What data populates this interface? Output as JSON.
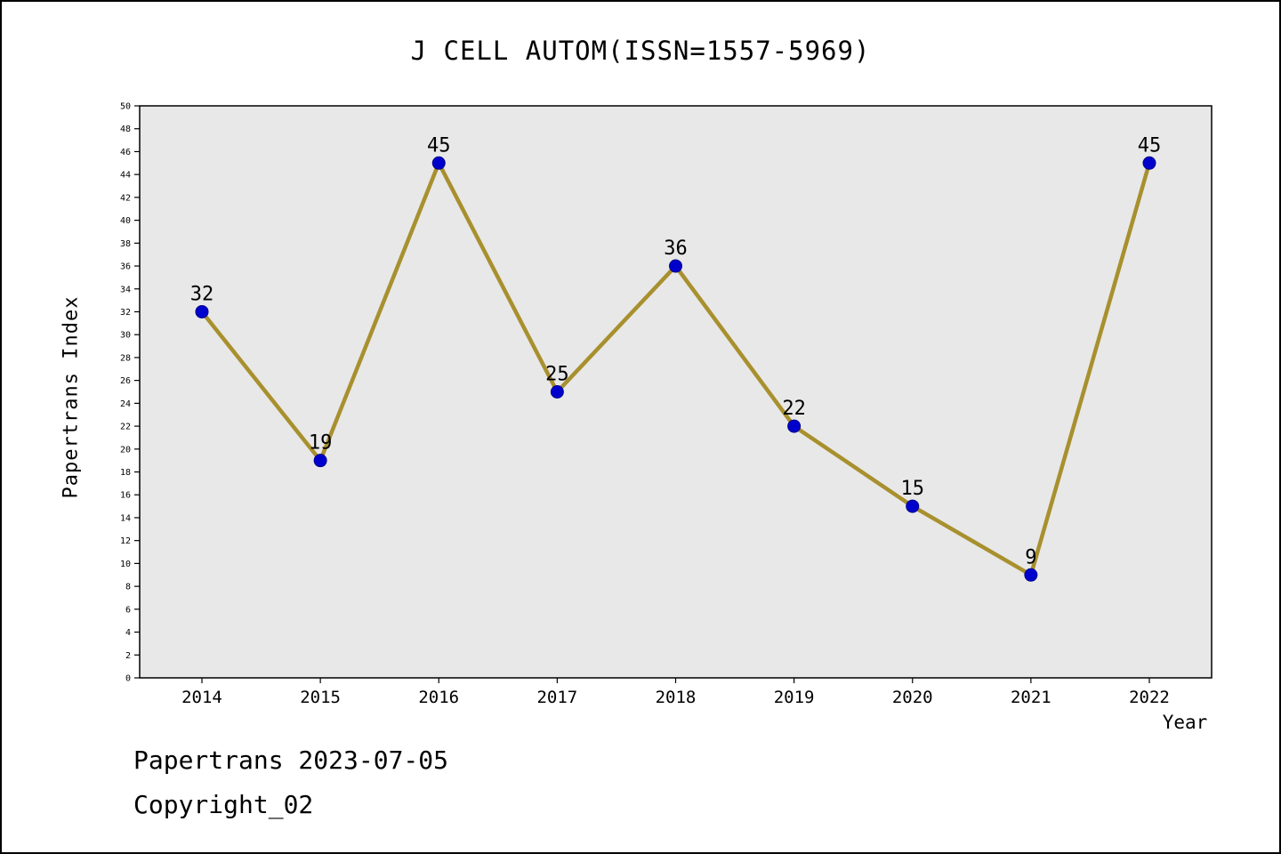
{
  "page": {
    "background": "#ffffff",
    "border_color": "#000000"
  },
  "chart_data": {
    "type": "line",
    "title": "J CELL AUTOM(ISSN=1557-5969)",
    "xlabel": "Year",
    "ylabel": "Papertrans Index",
    "x": [
      2014,
      2015,
      2016,
      2017,
      2018,
      2019,
      2020,
      2021,
      2022
    ],
    "values": [
      32,
      19,
      45,
      25,
      36,
      22,
      15,
      9,
      45
    ],
    "ylim": [
      0,
      50
    ],
    "ytick_step": 2,
    "grid": false,
    "legend": "none",
    "line_color": "#a8902e",
    "marker_color": "#0000cd",
    "marker_edge_color": "#00008b",
    "plot_bg": "#e8e8e8",
    "axis_color": "#000000",
    "show_value_labels": true
  },
  "footer": {
    "line1": "Papertrans 2023-07-05",
    "line2": "Copyright_02"
  }
}
